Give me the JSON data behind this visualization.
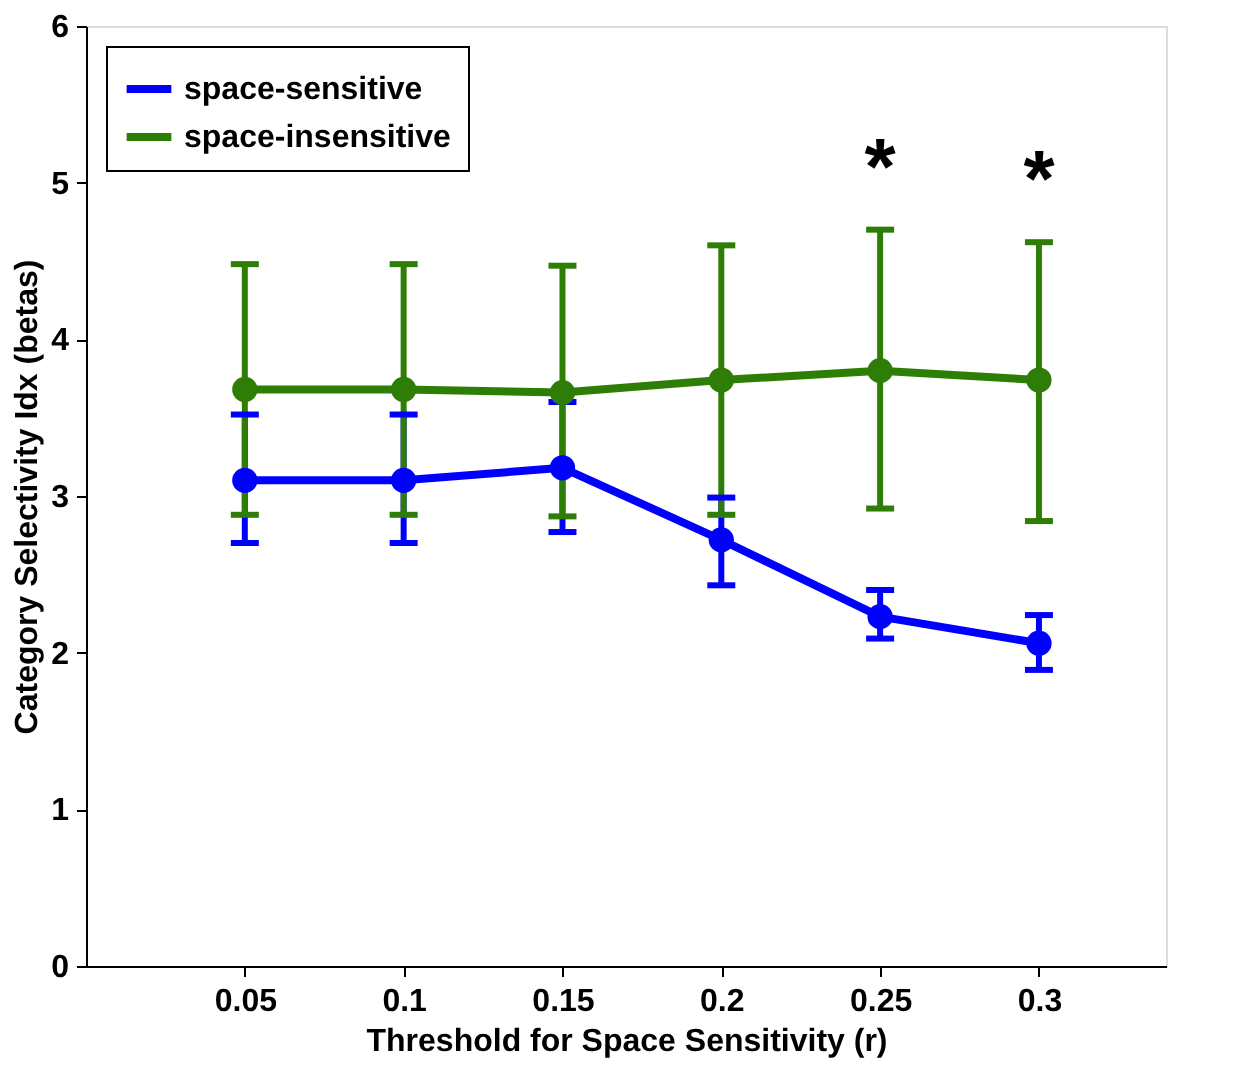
{
  "chart_data": {
    "type": "line",
    "xlabel": "Threshold for Space Sensitivity (r)",
    "ylabel": "Category Selectivity Idx (betas)",
    "x": [
      0.05,
      0.1,
      0.15,
      0.2,
      0.25,
      0.3
    ],
    "xlim": [
      0,
      0.34
    ],
    "xticks": [
      {
        "value": 0.05,
        "label": "0.05"
      },
      {
        "value": 0.1,
        "label": "0.1"
      },
      {
        "value": 0.15,
        "label": "0.15"
      },
      {
        "value": 0.2,
        "label": "0.2"
      },
      {
        "value": 0.25,
        "label": "0.25"
      },
      {
        "value": 0.3,
        "label": "0.3"
      }
    ],
    "ylim": [
      0,
      6
    ],
    "yticks": [
      0,
      1,
      2,
      3,
      4,
      5,
      6
    ],
    "series": [
      {
        "name": "space-sensitive",
        "color": "#0000ff",
        "values": [
          3.1,
          3.1,
          3.18,
          2.72,
          2.23,
          2.06
        ],
        "errors": [
          [
            2.7,
            3.52
          ],
          [
            2.7,
            3.52
          ],
          [
            2.77,
            3.6
          ],
          [
            2.43,
            2.99
          ],
          [
            2.09,
            2.4
          ],
          [
            1.89,
            2.24
          ]
        ]
      },
      {
        "name": "space-insensitive",
        "color": "#2e7d06",
        "values": [
          3.68,
          3.68,
          3.66,
          3.74,
          3.8,
          3.74
        ],
        "errors": [
          [
            2.88,
            4.48
          ],
          [
            2.88,
            4.48
          ],
          [
            2.87,
            4.47
          ],
          [
            2.88,
            4.6
          ],
          [
            2.92,
            4.7
          ],
          [
            2.84,
            4.62
          ]
        ]
      }
    ],
    "annotations": [
      {
        "text": "*",
        "x": 0.25,
        "y": 4.7
      },
      {
        "text": "*",
        "x": 0.3,
        "y": 4.62
      }
    ],
    "marker": "circle",
    "line_style": "solid",
    "legend": "top left",
    "grid": false
  }
}
